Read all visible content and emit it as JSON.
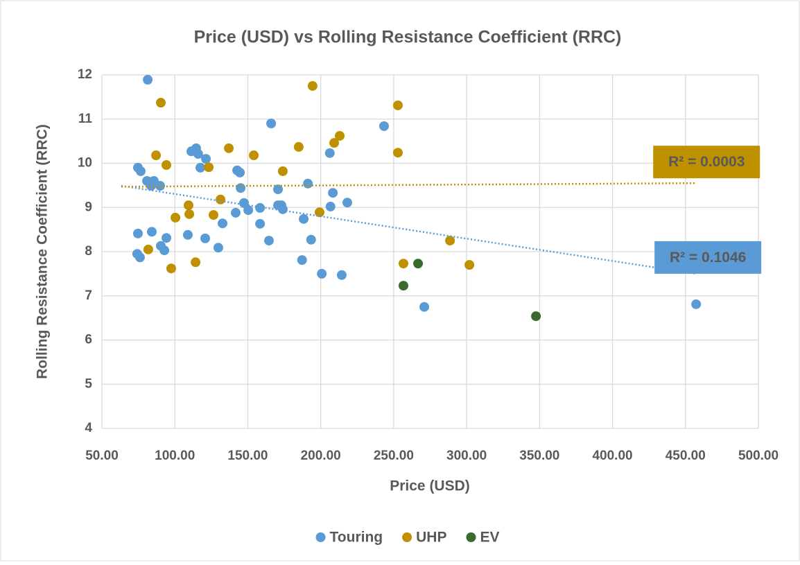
{
  "chart_data": {
    "type": "scatter",
    "title": "Price (USD) vs Rolling Resistance Coefficient (RRC)",
    "x_label": "Price (USD)",
    "y_label": "Rolling Resistance Coefficient (RRC)",
    "xlim": [
      50,
      500
    ],
    "xticks": [
      {
        "value": 50,
        "label": "50.00"
      },
      {
        "value": 100,
        "label": "100.00"
      },
      {
        "value": 150,
        "label": "150.00"
      },
      {
        "value": 200,
        "label": "200.00"
      },
      {
        "value": 250,
        "label": "250.00"
      },
      {
        "value": 300,
        "label": "300.00"
      },
      {
        "value": 350,
        "label": "350.00"
      },
      {
        "value": 400,
        "label": "400.00"
      },
      {
        "value": 450,
        "label": "450.00"
      },
      {
        "value": 500,
        "label": "500.00"
      }
    ],
    "ylim": [
      4,
      12
    ],
    "yticks": [
      4,
      5,
      6,
      7,
      8,
      9,
      10,
      11,
      12
    ],
    "grid": true,
    "legend": "bottom",
    "series": [
      {
        "name": "Touring",
        "color": "#5b9bd5",
        "x": [
          81.4,
          74.7,
          76.6,
          80.9,
          85.6,
          83.7,
          89.9,
          74.7,
          84.2,
          74.2,
          76.1,
          90.4,
          92.8,
          94.2,
          108.9,
          111.3,
          114.6,
          116.0,
          121.3,
          117.5,
          120.8,
          129.8,
          132.7,
          142.7,
          144.6,
          145.1,
          147.4,
          150.3,
          141.7,
          158.4,
          158.4,
          164.5,
          166.0,
          170.7,
          170.7,
          173.0,
          174.0,
          188.3,
          191.2,
          193.4,
          187.2,
          200.7,
          206.2,
          206.7,
          208.3,
          214.4,
          218.2,
          243.4,
          271.0,
          457.3
        ],
        "values": [
          11.89,
          9.9,
          9.82,
          9.6,
          9.6,
          9.49,
          9.49,
          8.41,
          8.45,
          7.95,
          7.87,
          8.13,
          8.03,
          8.31,
          8.38,
          10.27,
          10.34,
          10.21,
          10.1,
          9.9,
          8.3,
          8.09,
          8.64,
          9.84,
          9.79,
          9.44,
          9.1,
          8.94,
          8.88,
          8.99,
          8.63,
          8.25,
          10.9,
          9.41,
          9.05,
          9.05,
          8.96,
          8.74,
          9.54,
          8.27,
          7.81,
          7.5,
          10.23,
          9.02,
          9.33,
          7.47,
          9.11,
          10.84,
          6.75,
          6.81
        ],
        "trendline": {
          "x": [
            63.3,
            457.3
          ],
          "y": [
            9.49,
            7.5
          ],
          "label": "R² = 0.1046"
        }
      },
      {
        "name": "UHP",
        "color": "#bf9000",
        "x": [
          81.8,
          87.1,
          90.4,
          94.2,
          100.4,
          97.5,
          109.4,
          109.9,
          114.2,
          123.2,
          126.5,
          131.3,
          137.0,
          154.1,
          174.0,
          184.9,
          194.4,
          199.2,
          209.2,
          213.0,
          252.9,
          252.9,
          256.7,
          288.6,
          301.9
        ],
        "values": [
          8.05,
          10.18,
          11.37,
          9.96,
          8.77,
          7.62,
          9.05,
          8.85,
          7.76,
          9.91,
          8.83,
          9.18,
          10.34,
          10.18,
          9.82,
          10.37,
          11.75,
          8.89,
          10.46,
          10.62,
          11.31,
          10.24,
          7.73,
          8.25,
          7.7
        ],
        "trendline": {
          "x": [
            63.3,
            456.4
          ],
          "y": [
            9.47,
            9.55
          ],
          "label": "R² = 0.0003"
        }
      },
      {
        "name": "EV",
        "color": "#3a6b2e",
        "x": [
          256.7,
          266.7,
          347.5
        ],
        "values": [
          7.23,
          7.73,
          6.54
        ]
      }
    ]
  }
}
